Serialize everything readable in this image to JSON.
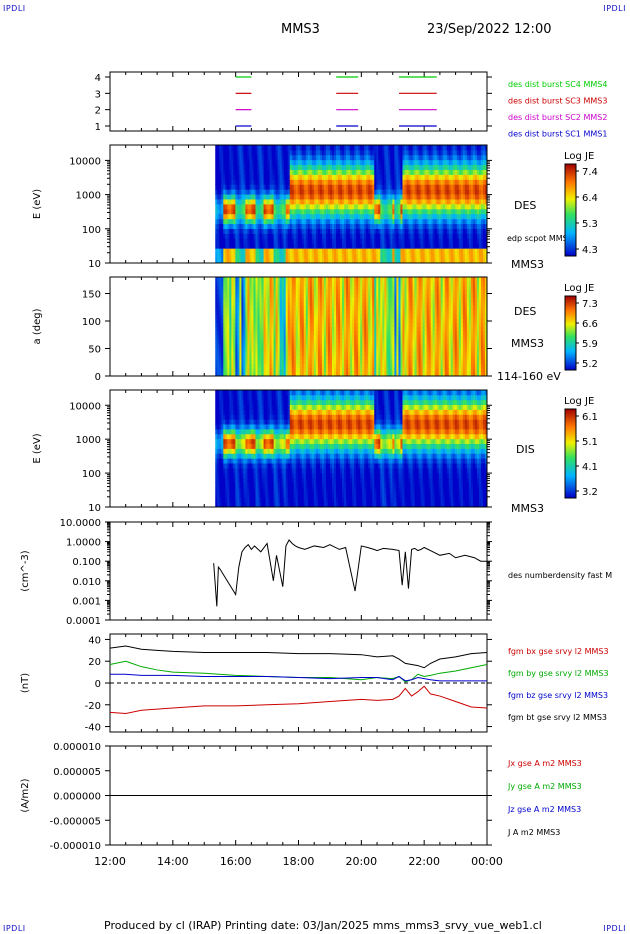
{
  "corner_label": "IPDLI",
  "header": {
    "spacecraft": "MMS3",
    "datetime": "23/Sep/2022 12:00"
  },
  "footer": {
    "text": "Produced by cl (IRAP)   Printing date: 03/Jan/2025   mms_mms3_srvy_vue_web1.cl"
  },
  "colors": {
    "des1": "#0000cc",
    "des2": "#cc00cc",
    "des3": "#cc0000",
    "des4": "#00cc00"
  },
  "chart_data": [
    {
      "type": "line",
      "panel": "burst-availability",
      "yticks": [
        "1",
        "2",
        "3",
        "4"
      ],
      "series": [
        {
          "name": "des dist burst SC1 MMS1",
          "level": 1,
          "color": "#0000cc",
          "x": [
            [
              16.0,
              16.5
            ],
            [
              19.2,
              19.9
            ],
            [
              21.2,
              22.4
            ]
          ]
        },
        {
          "name": "des dist burst SC2 MMS2",
          "level": 2,
          "color": "#cc00cc",
          "x": [
            [
              16.0,
              16.5
            ],
            [
              19.2,
              19.9
            ],
            [
              21.2,
              22.4
            ]
          ]
        },
        {
          "name": "des dist burst SC3 MMS3",
          "level": 3,
          "color": "#cc0000",
          "x": [
            [
              16.0,
              16.5
            ],
            [
              19.2,
              19.9
            ],
            [
              21.2,
              22.4
            ]
          ]
        },
        {
          "name": "des dist burst SC4 MMS4",
          "level": 4,
          "color": "#00cc00",
          "x": [
            [
              16.0,
              16.5
            ],
            [
              19.2,
              19.9
            ],
            [
              21.2,
              22.4
            ]
          ]
        }
      ]
    },
    {
      "type": "heatmap",
      "panel": "des-energy",
      "ylabel": "E (eV)",
      "yscale": "log",
      "yticks": [
        "10",
        "100",
        "1000",
        "10000"
      ],
      "right_labels": [
        "DES",
        "edp scpot MMS3",
        "MMS3"
      ],
      "colorbar": {
        "label": "Log JE",
        "ticks": [
          "7.4",
          "6.4",
          "5.3",
          "4.3"
        ]
      },
      "data_start": 15.35
    },
    {
      "type": "heatmap",
      "panel": "des-pitch-angle",
      "ylabel": "a (deg)",
      "yticks": [
        "0",
        "50",
        "100",
        "150"
      ],
      "right_labels": [
        "DES",
        "MMS3",
        "114-160 eV"
      ],
      "colorbar": {
        "label": "Log JE",
        "ticks": [
          "7.3",
          "6.6",
          "5.9",
          "5.2"
        ]
      },
      "data_start": 15.35
    },
    {
      "type": "heatmap",
      "panel": "dis-energy",
      "ylabel": "E (eV)",
      "yscale": "log",
      "yticks": [
        "10",
        "100",
        "1000",
        "10000"
      ],
      "right_labels": [
        "DIS",
        "MMS3"
      ],
      "colorbar": {
        "label": "Log JE",
        "ticks": [
          "6.1",
          "5.1",
          "4.1",
          "3.2"
        ]
      },
      "data_start": 15.35
    },
    {
      "type": "line",
      "panel": "number-density",
      "ylabel": "(cm^-3)",
      "yscale": "log",
      "yticks": [
        "0.0001",
        "0.001",
        "0.010",
        "0.100",
        "1.0000",
        "10.0000"
      ],
      "series": [
        {
          "name": "des numberdensity fast M",
          "color": "#000000",
          "x": [
            15.3,
            15.4,
            15.45,
            15.5,
            16.0,
            16.1,
            16.2,
            16.3,
            16.4,
            16.5,
            16.6,
            16.8,
            17.0,
            17.2,
            17.3,
            17.5,
            17.6,
            17.7,
            17.8,
            17.9,
            18.0,
            18.2,
            18.5,
            18.8,
            19.0,
            19.3,
            19.5,
            19.8,
            20.0,
            20.2,
            20.4,
            20.5,
            20.7,
            21.0,
            21.2,
            21.3,
            21.4,
            21.5,
            21.6,
            21.7,
            21.8,
            21.9,
            22.0,
            22.2,
            22.5,
            22.8,
            23.0,
            23.3,
            23.6,
            23.8,
            24.0
          ],
          "y": [
            0.08,
            0.0005,
            0.05,
            0.04,
            0.002,
            0.05,
            0.3,
            0.5,
            0.7,
            0.4,
            0.6,
            0.3,
            0.8,
            0.01,
            0.2,
            0.005,
            0.6,
            1.2,
            0.8,
            0.6,
            0.5,
            0.4,
            0.6,
            0.5,
            0.7,
            0.4,
            0.5,
            0.003,
            0.6,
            0.5,
            0.4,
            0.35,
            0.45,
            0.4,
            0.35,
            0.006,
            0.3,
            0.004,
            0.4,
            0.45,
            0.35,
            0.4,
            0.5,
            0.35,
            0.2,
            0.25,
            0.15,
            0.2,
            0.15,
            0.1,
            0.1
          ]
        }
      ]
    },
    {
      "type": "line",
      "panel": "magnetic-field",
      "ylabel": "(nT)",
      "ylim": [
        -45,
        45
      ],
      "yticks": [
        "-40",
        "-20",
        "0",
        "20",
        "40"
      ],
      "x": [
        12,
        12.5,
        13,
        13.5,
        14,
        15,
        16,
        17,
        18,
        19,
        20,
        20.5,
        21,
        21.2,
        21.4,
        21.6,
        21.8,
        22.0,
        22.2,
        22.5,
        23,
        23.5,
        24
      ],
      "series": [
        {
          "name": "fgm bx gse srvy l2 MMS3",
          "color": "#cc0000",
          "values": [
            -27,
            -28,
            -25,
            -24,
            -23,
            -21,
            -21,
            -20,
            -19,
            -17,
            -15,
            -16,
            -15,
            -12,
            -5,
            -12,
            -8,
            -3,
            -10,
            -12,
            -17,
            -22,
            -23
          ]
        },
        {
          "name": "fgm by gse srvy l2 MMS3",
          "color": "#00aa00",
          "values": [
            17,
            20,
            15,
            12,
            10,
            9,
            7,
            6,
            5,
            5,
            3,
            5,
            4,
            6,
            1,
            3,
            8,
            6,
            7,
            9,
            11,
            14,
            17
          ]
        },
        {
          "name": "fgm bz gse srvy l2 MMS3",
          "color": "#0000cc",
          "values": [
            8,
            8,
            7,
            7,
            7,
            6,
            6,
            6,
            5,
            4,
            5,
            5,
            3,
            6,
            2,
            3,
            5,
            4,
            3,
            2,
            2,
            2,
            2
          ]
        },
        {
          "name": "fgm bt gse srvy l2 MMS3",
          "color": "#000000",
          "values": [
            32,
            34,
            31,
            30,
            29,
            28,
            28,
            28,
            27,
            27,
            26,
            24,
            25,
            22,
            18,
            17,
            16,
            14,
            18,
            22,
            24,
            27,
            28
          ]
        }
      ]
    },
    {
      "type": "line",
      "panel": "current-density",
      "ylabel": "(A/m2)",
      "ylim": [
        -0.0001,
        0.0001
      ],
      "yticks": [
        "-0.000010",
        "-0.000005",
        "0.000000",
        "0.000005",
        "0.000010"
      ],
      "series": [
        {
          "name": "Jx gse A m2 MMS3",
          "color": "#cc0000"
        },
        {
          "name": "Jy gse A m2 MMS3",
          "color": "#00aa00"
        },
        {
          "name": "Jz gse A m2 MMS3",
          "color": "#0000cc"
        },
        {
          "name": "J A m2 MMS3",
          "color": "#000000"
        }
      ]
    }
  ],
  "time_axis": {
    "ticks": [
      "12:00",
      "14:00",
      "16:00",
      "18:00",
      "20:00",
      "22:00",
      "00:00"
    ]
  }
}
